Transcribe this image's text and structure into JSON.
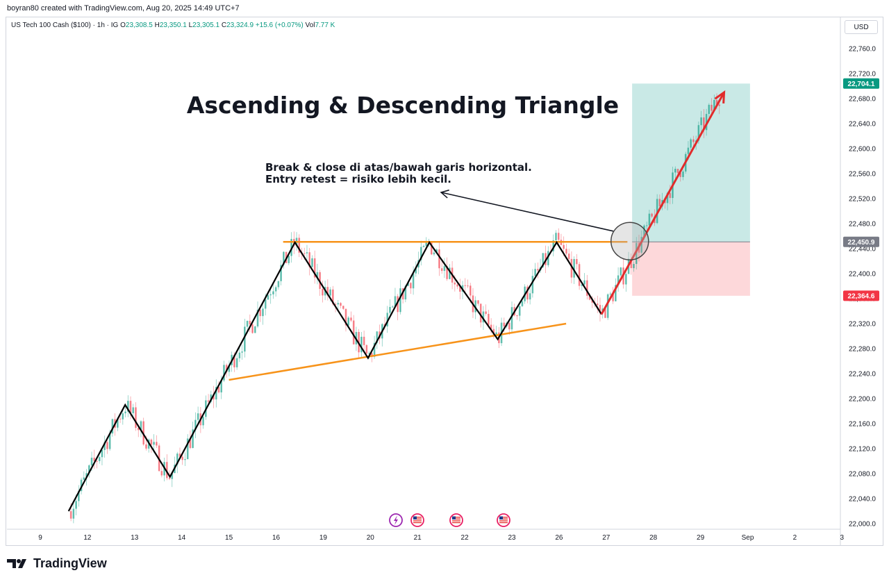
{
  "header": {
    "credit": "boyran80 created with TradingView.com, Aug 20, 2025 14:49 UTC+7"
  },
  "legend": {
    "symbol": "US Tech 100 Cash ($100) · 1h · IG",
    "open_label": "O",
    "open": "23,308.5",
    "high_label": "H",
    "high": "23,350.1",
    "low_label": "L",
    "low": "23,305.1",
    "close_label": "C",
    "close": "23,324.9",
    "change": "+15.6 (+0.07%)",
    "vol_label": "Vol",
    "vol": "7.77 K"
  },
  "currency_button": "USD",
  "brand": "TradingView",
  "colors": {
    "up": "#089981",
    "down": "#f23645",
    "pattern_line": "#000000",
    "trendline": "#f7931a",
    "arrow": "#e12b2b",
    "target_zone": "#b2dfdb",
    "stop_zone": "#fccbcd"
  },
  "chart_data": {
    "type": "candlestick",
    "title": "Ascending & Descending Triangle",
    "annotation": [
      "Break & close di atas/bawah garis horizontal.",
      "Entry retest = risiko lebih kecil."
    ],
    "y_axis": {
      "ticks": [
        "22,760.0",
        "22,720.0",
        "22,680.0",
        "22,640.0",
        "22,600.0",
        "22,560.0",
        "22,520.0",
        "22,480.0",
        "22,440.0",
        "22,400.0",
        "22,360.0",
        "22,320.0",
        "22,280.0",
        "22,240.0",
        "22,200.0",
        "22,160.0",
        "22,120.0",
        "22,080.0",
        "22,040.0",
        "22,000.0"
      ],
      "ylim": [
        22000,
        22770
      ]
    },
    "x_axis": {
      "ticks": [
        "9",
        "12",
        "13",
        "14",
        "15",
        "16",
        "19",
        "20",
        "21",
        "22",
        "23",
        "26",
        "27",
        "28",
        "29",
        "Sep",
        "2",
        "3"
      ]
    },
    "price_labels": [
      {
        "value": 22704.1,
        "text": "22,704.1",
        "kind": "target"
      },
      {
        "value": 22450.9,
        "text": "22,450.9",
        "kind": "entry"
      },
      {
        "value": 22364.6,
        "text": "22,364.6",
        "kind": "stop"
      }
    ],
    "resistance": 22450.9,
    "support_line": [
      {
        "x": 4.0,
        "y": 22230
      },
      {
        "x": 11.15,
        "y": 22320
      }
    ],
    "zigzag": [
      {
        "x": 0.6,
        "y": 22020
      },
      {
        "x": 1.8,
        "y": 22190
      },
      {
        "x": 2.75,
        "y": 22075
      },
      {
        "x": 5.4,
        "y": 22450
      },
      {
        "x": 6.95,
        "y": 22265
      },
      {
        "x": 8.25,
        "y": 22450
      },
      {
        "x": 9.7,
        "y": 22295
      },
      {
        "x": 10.95,
        "y": 22450
      },
      {
        "x": 11.9,
        "y": 22335
      }
    ],
    "breakout_arrow": [
      {
        "x": 11.9,
        "y": 22335
      },
      {
        "x": 14.5,
        "y": 22690
      }
    ],
    "retest_circle": {
      "x": 12.5,
      "y": 22452
    },
    "pointer_arrow": {
      "from": {
        "x": 12.15,
        "y": 22468
      },
      "to": {
        "x": 8.5,
        "y": 22530
      }
    },
    "position_box": {
      "x_start": 12.55,
      "x_end": 15.05,
      "target": 22704.1,
      "entry": 22450.9,
      "stop": 22364.6
    },
    "event_markers": [
      "lightning-icon",
      "us-flag-icon",
      "us-flag-icon",
      "us-flag-icon"
    ]
  }
}
